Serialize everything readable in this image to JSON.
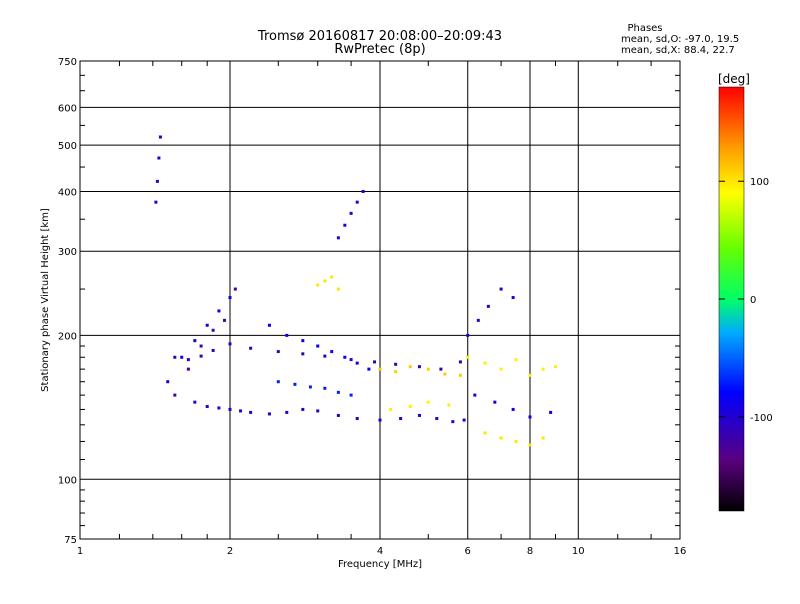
{
  "chart_data": {
    "type": "scatter",
    "title": "Tromsø 20160817 20:08:00–20:09:43",
    "subtitle": "RwPretec (8p)",
    "xlabel": "Frequency [MHz]",
    "ylabel": "Stationary phase Virtual Height [km]",
    "xscale": "log",
    "yscale": "log",
    "xlim": [
      1,
      16
    ],
    "ylim": [
      75,
      750
    ],
    "xticks": [
      "1",
      "2",
      "4",
      "6",
      "8",
      "10",
      "16"
    ],
    "yticks": [
      "75",
      "100",
      "200",
      "300",
      "400",
      "500",
      "600",
      "750"
    ],
    "grid": true,
    "stats": {
      "heading": "Phases",
      "line_o": "mean, sd,O: -97.0, 19.5",
      "line_x": "mean, sd,X: 88.4, 22.7"
    },
    "colorbar": {
      "label": "[deg]",
      "range": [
        -180,
        180
      ],
      "ticks": [
        "100",
        "0",
        "-100"
      ],
      "tick_values": [
        100,
        0,
        -100
      ]
    },
    "traces": [
      {
        "x": [
          1.7,
          1.8,
          1.9,
          2.0,
          2.1,
          2.2,
          2.4,
          2.6,
          2.8,
          3.0,
          3.3,
          3.6,
          4.0,
          4.4,
          4.8,
          5.2,
          5.6,
          5.9
        ],
        "y": [
          145,
          142,
          141,
          140,
          139,
          138,
          137,
          138,
          140,
          139,
          136,
          134,
          133,
          134,
          136,
          134,
          132,
          133
        ],
        "phase": -100
      },
      {
        "x": [
          1.55,
          1.65,
          1.75,
          1.85,
          2.0,
          2.2,
          2.5,
          2.8,
          3.1,
          3.5,
          3.9,
          4.3,
          4.8,
          5.3,
          5.8
        ],
        "y": [
          180,
          178,
          181,
          186,
          192,
          188,
          185,
          183,
          181,
          178,
          176,
          174,
          172,
          170,
          176
        ],
        "phase": -110
      },
      {
        "x": [
          1.5,
          1.6,
          1.7,
          1.8,
          1.9,
          2.0
        ],
        "y": [
          160,
          180,
          195,
          210,
          225,
          240
        ],
        "phase": -90
      },
      {
        "x": [
          1.55,
          1.65,
          1.75,
          1.85,
          1.95,
          2.05
        ],
        "y": [
          150,
          170,
          190,
          205,
          215,
          250
        ],
        "phase": -120
      },
      {
        "x": [
          2.4,
          2.6,
          2.8,
          3.0,
          3.2,
          3.4,
          3.6,
          3.8
        ],
        "y": [
          210,
          200,
          195,
          190,
          185,
          180,
          175,
          170
        ],
        "phase": -85
      },
      {
        "x": [
          2.5,
          2.7,
          2.9,
          3.1,
          3.3,
          3.5
        ],
        "y": [
          160,
          158,
          156,
          155,
          152,
          150
        ],
        "phase": -70
      },
      {
        "x": [
          3.3,
          3.4,
          3.5,
          3.6,
          3.7
        ],
        "y": [
          320,
          340,
          360,
          380,
          400
        ],
        "phase": -100
      },
      {
        "x": [
          1.42,
          1.43,
          1.44,
          1.45
        ],
        "y": [
          380,
          420,
          470,
          520
        ],
        "phase": -100
      },
      {
        "x": [
          3.0,
          3.1,
          3.2,
          3.3
        ],
        "y": [
          255,
          260,
          265,
          250
        ],
        "phase": 100
      },
      {
        "x": [
          4.0,
          4.3,
          4.6,
          5.0,
          5.4,
          5.8
        ],
        "y": [
          170,
          168,
          172,
          170,
          166,
          165
        ],
        "phase": 110
      },
      {
        "x": [
          4.2,
          4.6,
          5.0,
          5.5
        ],
        "y": [
          140,
          142,
          145,
          143
        ],
        "phase": 95
      },
      {
        "x": [
          6.0,
          6.5,
          7.0,
          7.5,
          8.0,
          8.5,
          9.0
        ],
        "y": [
          180,
          175,
          170,
          178,
          165,
          170,
          172
        ],
        "phase": 95
      },
      {
        "x": [
          6.5,
          7.0,
          7.5,
          8.0,
          8.5
        ],
        "y": [
          125,
          122,
          120,
          118,
          122
        ],
        "phase": 100
      },
      {
        "x": [
          6.0,
          6.3,
          6.6,
          7.0,
          7.4
        ],
        "y": [
          200,
          215,
          230,
          250,
          240
        ],
        "phase": -100
      },
      {
        "x": [
          6.2,
          6.8,
          7.4,
          8.0,
          8.8
        ],
        "y": [
          150,
          145,
          140,
          135,
          138
        ],
        "phase": -90
      }
    ]
  }
}
